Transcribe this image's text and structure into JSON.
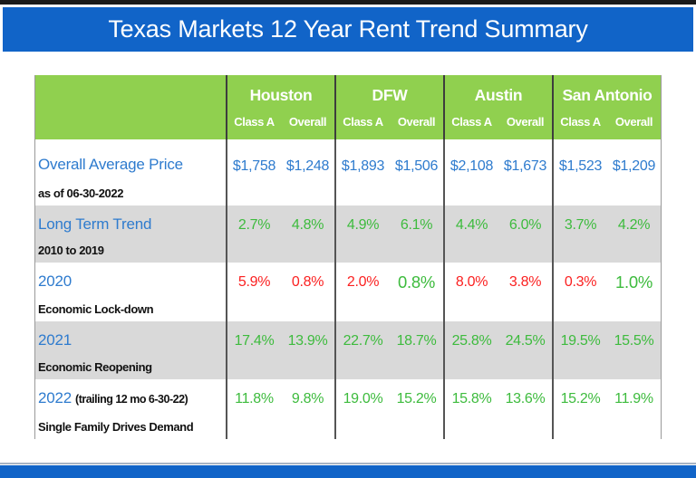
{
  "colors": {
    "title-blue": "#1164C8",
    "header-green": "#90D04F",
    "row-gray": "#D9D9D9",
    "label-blue": "#2E7BCE",
    "val-green": "#3DBB3D",
    "val-red": "#FB2121"
  },
  "chart_data": {
    "type": "table",
    "title": "Texas Markets 12 Year Rent Trend Summary",
    "column_groups": [
      "Houston",
      "DFW",
      "Austin",
      "San Antonio"
    ],
    "sub_columns": {
      "a": "Class A",
      "b": "Overall"
    },
    "rows": [
      {
        "label": "Overall Average Price",
        "note": "",
        "subtitle": "as of 06-30-2022",
        "cells": [
          {
            "value": "$1,758",
            "tone": "blue"
          },
          {
            "value": "$1,248",
            "tone": "blue"
          },
          {
            "value": "$1,893",
            "tone": "blue"
          },
          {
            "value": "$1,506",
            "tone": "blue"
          },
          {
            "value": "$2,108",
            "tone": "blue"
          },
          {
            "value": "$1,673",
            "tone": "blue"
          },
          {
            "value": "$1,523",
            "tone": "blue"
          },
          {
            "value": "$1,209",
            "tone": "blue"
          }
        ]
      },
      {
        "label": "Long Term Trend",
        "note": "",
        "subtitle": "2010 to 2019",
        "cells": [
          {
            "value": "2.7%",
            "tone": "green"
          },
          {
            "value": "4.8%",
            "tone": "green"
          },
          {
            "value": "4.9%",
            "tone": "green"
          },
          {
            "value": "6.1%",
            "tone": "green"
          },
          {
            "value": "4.4%",
            "tone": "green"
          },
          {
            "value": "6.0%",
            "tone": "green"
          },
          {
            "value": "3.7%",
            "tone": "green"
          },
          {
            "value": "4.2%",
            "tone": "green"
          }
        ]
      },
      {
        "label": "2020",
        "note": "",
        "subtitle": "Economic Lock-down",
        "cells": [
          {
            "value": "5.9%",
            "tone": "red"
          },
          {
            "value": "0.8%",
            "tone": "red"
          },
          {
            "value": "2.0%",
            "tone": "red"
          },
          {
            "value": "0.8%",
            "tone": "green-lg"
          },
          {
            "value": "8.0%",
            "tone": "red"
          },
          {
            "value": "3.8%",
            "tone": "red"
          },
          {
            "value": "0.3%",
            "tone": "red"
          },
          {
            "value": "1.0%",
            "tone": "green-lg"
          }
        ]
      },
      {
        "label": "2021",
        "note": "",
        "subtitle": "Economic Reopening",
        "cells": [
          {
            "value": "17.4%",
            "tone": "green"
          },
          {
            "value": "13.9%",
            "tone": "green"
          },
          {
            "value": "22.7%",
            "tone": "green"
          },
          {
            "value": "18.7%",
            "tone": "green"
          },
          {
            "value": "25.8%",
            "tone": "green"
          },
          {
            "value": "24.5%",
            "tone": "green"
          },
          {
            "value": "19.5%",
            "tone": "green"
          },
          {
            "value": "15.5%",
            "tone": "green"
          }
        ]
      },
      {
        "label": "2022",
        "note": "(trailing 12 mo 6-30-22)",
        "subtitle": "Single Family Drives Demand",
        "cells": [
          {
            "value": "11.8%",
            "tone": "green"
          },
          {
            "value": "9.8%",
            "tone": "green"
          },
          {
            "value": "19.0%",
            "tone": "green"
          },
          {
            "value": "15.2%",
            "tone": "green"
          },
          {
            "value": "15.8%",
            "tone": "green"
          },
          {
            "value": "13.6%",
            "tone": "green"
          },
          {
            "value": "15.2%",
            "tone": "green"
          },
          {
            "value": "11.9%",
            "tone": "green"
          }
        ]
      }
    ]
  }
}
